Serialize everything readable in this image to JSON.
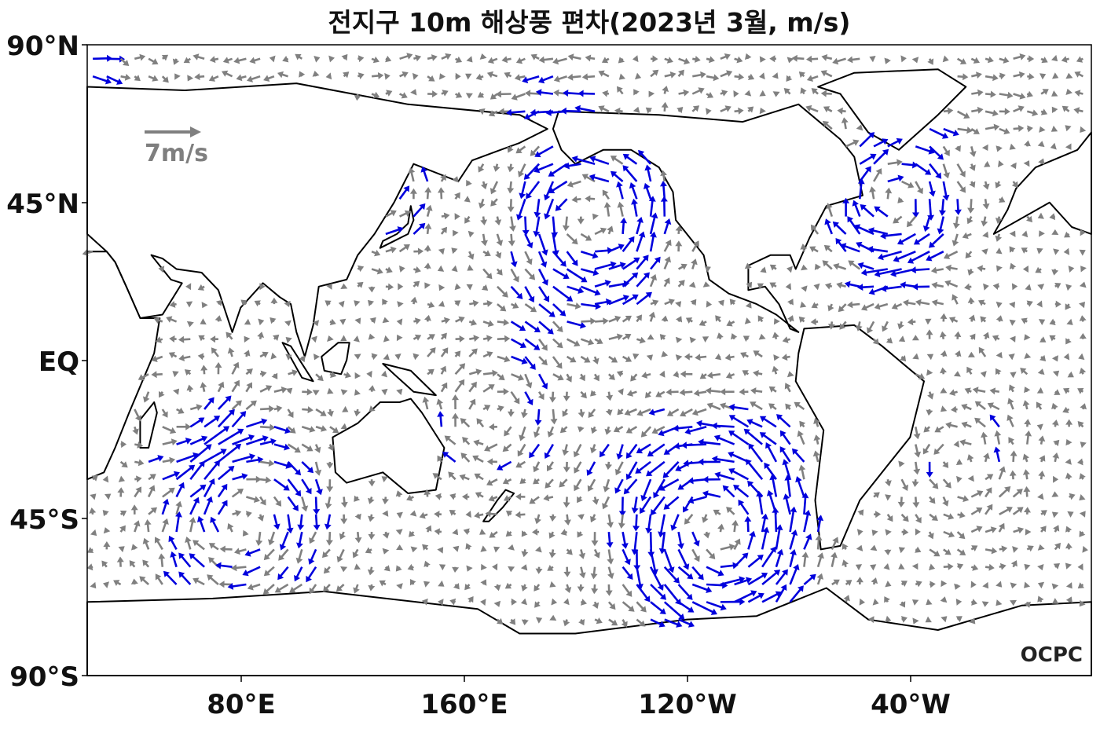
{
  "title": "전지구 10m 해상풍 편차(2023년 3월, m/s)",
  "axes": {
    "y_ticks": [
      "90°N",
      "45°N",
      "EQ",
      "45°S",
      "90°S"
    ],
    "x_ticks": [
      "80°E",
      "160°E",
      "120°W",
      "40°W"
    ]
  },
  "reference_vector": {
    "label": "7m/s",
    "speed": 7,
    "color": "#808080"
  },
  "brand": "OCPC",
  "colors": {
    "strong": "#0000dd",
    "weak": "#808080",
    "coast": "#000000"
  },
  "chart_data": {
    "type": "vector field",
    "variable": "10m wind anomaly",
    "units": "m/s",
    "lon_range": [
      25,
      385
    ],
    "lat_range": [
      -90,
      90
    ],
    "seed": 2023,
    "series": [
      {
        "name": "strong",
        "color": "#0000dd"
      },
      {
        "name": "weak",
        "color": "#808080"
      }
    ]
  }
}
